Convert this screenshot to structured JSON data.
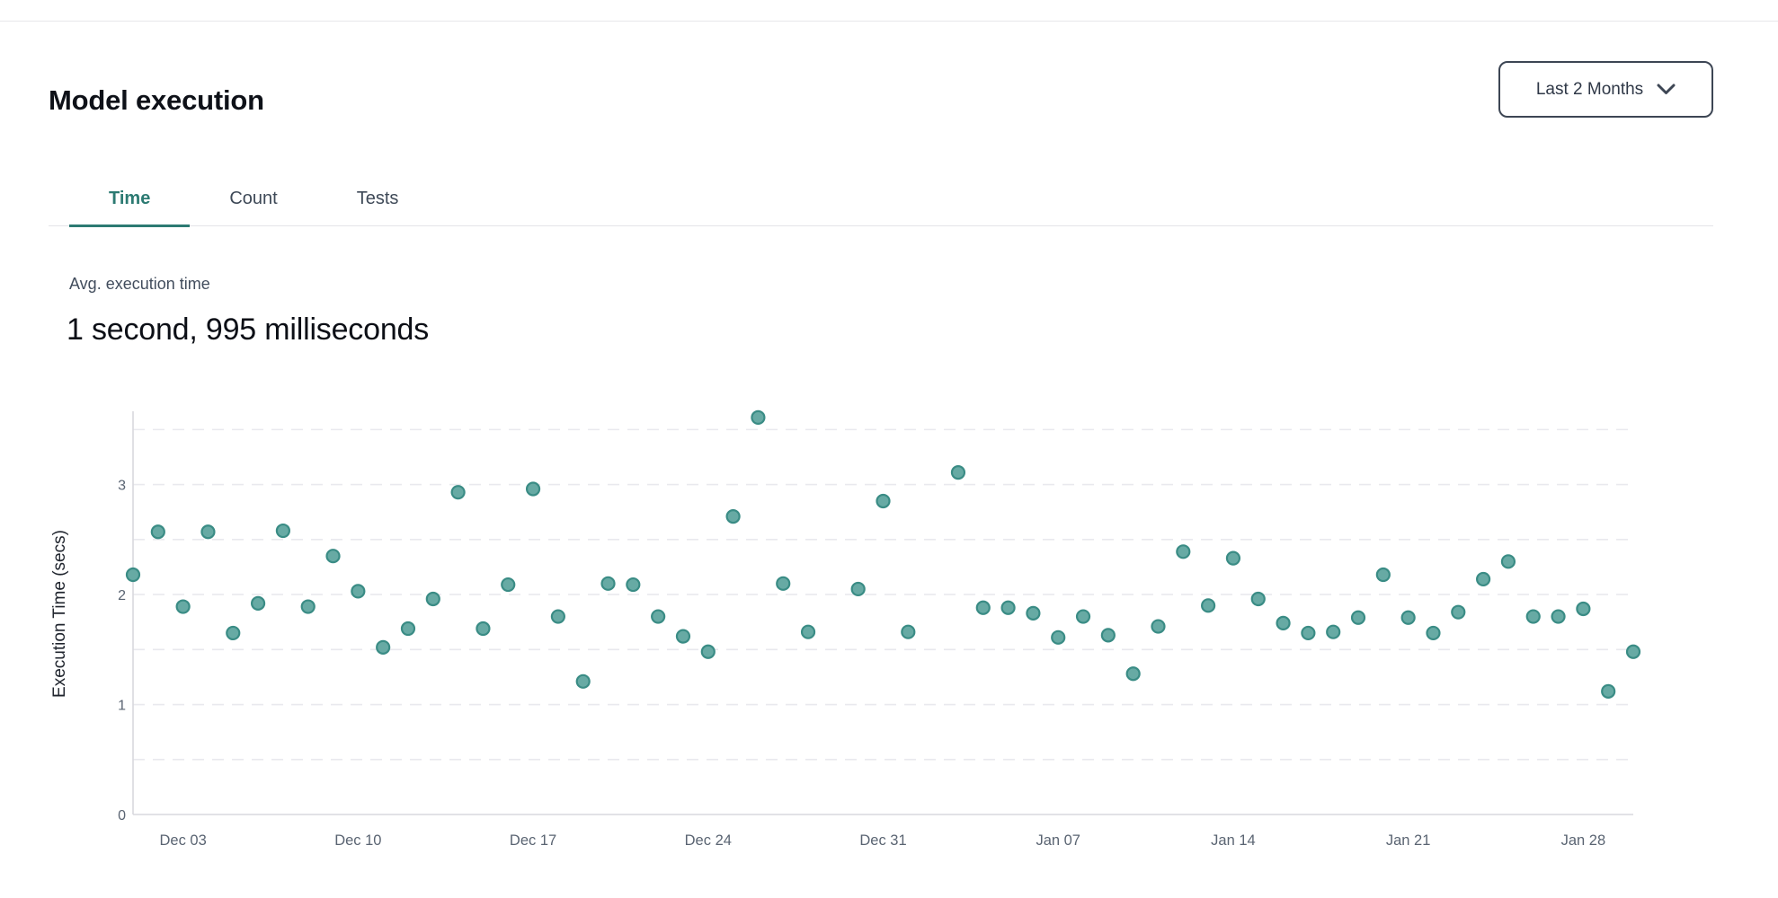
{
  "header": {
    "title": "Model execution",
    "range_selector": {
      "label": "Last 2 Months",
      "icon": "chevron-down"
    }
  },
  "tabs": [
    {
      "label": "Time",
      "active": true
    },
    {
      "label": "Count",
      "active": false
    },
    {
      "label": "Tests",
      "active": false
    }
  ],
  "stat": {
    "label": "Avg. execution time",
    "value": "1 second, 995 milliseconds"
  },
  "colors": {
    "accent_teal": "#2c7a72",
    "text_dark": "#0e1118",
    "text_slate": "#3e4957",
    "border": "#e4e4e8"
  },
  "chart_data": {
    "type": "scatter",
    "title": "",
    "xlabel": "",
    "ylabel": "Execution Time (secs)",
    "ylim": [
      0,
      3.65
    ],
    "yticks": [
      0,
      1,
      2,
      3
    ],
    "grid": "horizontal dashed lines every 0.5 secs",
    "legend": "none",
    "x_days": 60,
    "x_ticks": [
      {
        "label": "Dec 03",
        "day": 2
      },
      {
        "label": "Dec 10",
        "day": 9
      },
      {
        "label": "Dec 17",
        "day": 16
      },
      {
        "label": "Dec 24",
        "day": 23
      },
      {
        "label": "Dec 31",
        "day": 30
      },
      {
        "label": "Jan 07",
        "day": 37
      },
      {
        "label": "Jan 14",
        "day": 44
      },
      {
        "label": "Jan 21",
        "day": 51
      },
      {
        "label": "Jan 28",
        "day": 58
      }
    ],
    "colors": {
      "marker_fill": "#67aaa4",
      "marker_stroke": "#3a8c85",
      "grid": "#e9e9ee",
      "axis": "#d8d8dd",
      "tick_text": "#5a6472",
      "axis_title_text": "#20252e"
    },
    "points": [
      {
        "date": "Dec 01",
        "day": 0,
        "secs": 2.18
      },
      {
        "date": "Dec 02",
        "day": 1,
        "secs": 2.57
      },
      {
        "date": "Dec 03",
        "day": 2,
        "secs": 1.89
      },
      {
        "date": "Dec 04",
        "day": 3,
        "secs": 2.57
      },
      {
        "date": "Dec 05",
        "day": 4,
        "secs": 1.65
      },
      {
        "date": "Dec 06",
        "day": 5,
        "secs": 1.92
      },
      {
        "date": "Dec 07",
        "day": 6,
        "secs": 2.58
      },
      {
        "date": "Dec 08",
        "day": 7,
        "secs": 1.89
      },
      {
        "date": "Dec 09",
        "day": 8,
        "secs": 2.35
      },
      {
        "date": "Dec 10",
        "day": 9,
        "secs": 2.03
      },
      {
        "date": "Dec 11",
        "day": 10,
        "secs": 1.52
      },
      {
        "date": "Dec 12",
        "day": 11,
        "secs": 1.69
      },
      {
        "date": "Dec 13",
        "day": 12,
        "secs": 1.96
      },
      {
        "date": "Dec 14",
        "day": 13,
        "secs": 2.93
      },
      {
        "date": "Dec 15",
        "day": 14,
        "secs": 1.69
      },
      {
        "date": "Dec 16",
        "day": 15,
        "secs": 2.09
      },
      {
        "date": "Dec 17",
        "day": 16,
        "secs": 2.96
      },
      {
        "date": "Dec 18",
        "day": 17,
        "secs": 1.8
      },
      {
        "date": "Dec 19",
        "day": 18,
        "secs": 1.21
      },
      {
        "date": "Dec 20",
        "day": 19,
        "secs": 2.1
      },
      {
        "date": "Dec 21",
        "day": 20,
        "secs": 2.09
      },
      {
        "date": "Dec 22",
        "day": 21,
        "secs": 1.8
      },
      {
        "date": "Dec 23",
        "day": 22,
        "secs": 1.62
      },
      {
        "date": "Dec 24",
        "day": 23,
        "secs": 1.48
      },
      {
        "date": "Dec 25",
        "day": 24,
        "secs": 2.71
      },
      {
        "date": "Dec 26",
        "day": 25,
        "secs": 3.61
      },
      {
        "date": "Dec 27",
        "day": 26,
        "secs": 2.1
      },
      {
        "date": "Dec 28",
        "day": 27,
        "secs": 1.66
      },
      {
        "date": "Dec 30",
        "day": 29,
        "secs": 2.05
      },
      {
        "date": "Dec 31",
        "day": 30,
        "secs": 2.85
      },
      {
        "date": "Jan 01",
        "day": 31,
        "secs": 1.66
      },
      {
        "date": "Jan 03",
        "day": 33,
        "secs": 3.11
      },
      {
        "date": "Jan 04",
        "day": 34,
        "secs": 1.88
      },
      {
        "date": "Jan 05",
        "day": 35,
        "secs": 1.88
      },
      {
        "date": "Jan 06",
        "day": 36,
        "secs": 1.83
      },
      {
        "date": "Jan 07",
        "day": 37,
        "secs": 1.61
      },
      {
        "date": "Jan 08",
        "day": 38,
        "secs": 1.8
      },
      {
        "date": "Jan 09",
        "day": 39,
        "secs": 1.63
      },
      {
        "date": "Jan 10",
        "day": 40,
        "secs": 1.28
      },
      {
        "date": "Jan 11",
        "day": 41,
        "secs": 1.71
      },
      {
        "date": "Jan 12",
        "day": 42,
        "secs": 2.39
      },
      {
        "date": "Jan 13",
        "day": 43,
        "secs": 1.9
      },
      {
        "date": "Jan 14",
        "day": 44,
        "secs": 2.33
      },
      {
        "date": "Jan 15",
        "day": 45,
        "secs": 1.96
      },
      {
        "date": "Jan 16",
        "day": 46,
        "secs": 1.74
      },
      {
        "date": "Jan 17",
        "day": 47,
        "secs": 1.65
      },
      {
        "date": "Jan 18",
        "day": 48,
        "secs": 1.66
      },
      {
        "date": "Jan 19",
        "day": 49,
        "secs": 1.79
      },
      {
        "date": "Jan 20",
        "day": 50,
        "secs": 2.18
      },
      {
        "date": "Jan 21",
        "day": 51,
        "secs": 1.79
      },
      {
        "date": "Jan 22",
        "day": 52,
        "secs": 1.65
      },
      {
        "date": "Jan 23",
        "day": 53,
        "secs": 1.84
      },
      {
        "date": "Jan 24",
        "day": 54,
        "secs": 2.14
      },
      {
        "date": "Jan 25",
        "day": 55,
        "secs": 2.3
      },
      {
        "date": "Jan 26",
        "day": 56,
        "secs": 1.8
      },
      {
        "date": "Jan 27",
        "day": 57,
        "secs": 1.8
      },
      {
        "date": "Jan 28",
        "day": 58,
        "secs": 1.87
      },
      {
        "date": "Jan 29",
        "day": 59,
        "secs": 1.12
      },
      {
        "date": "Jan 30",
        "day": 60,
        "secs": 1.48
      }
    ]
  }
}
